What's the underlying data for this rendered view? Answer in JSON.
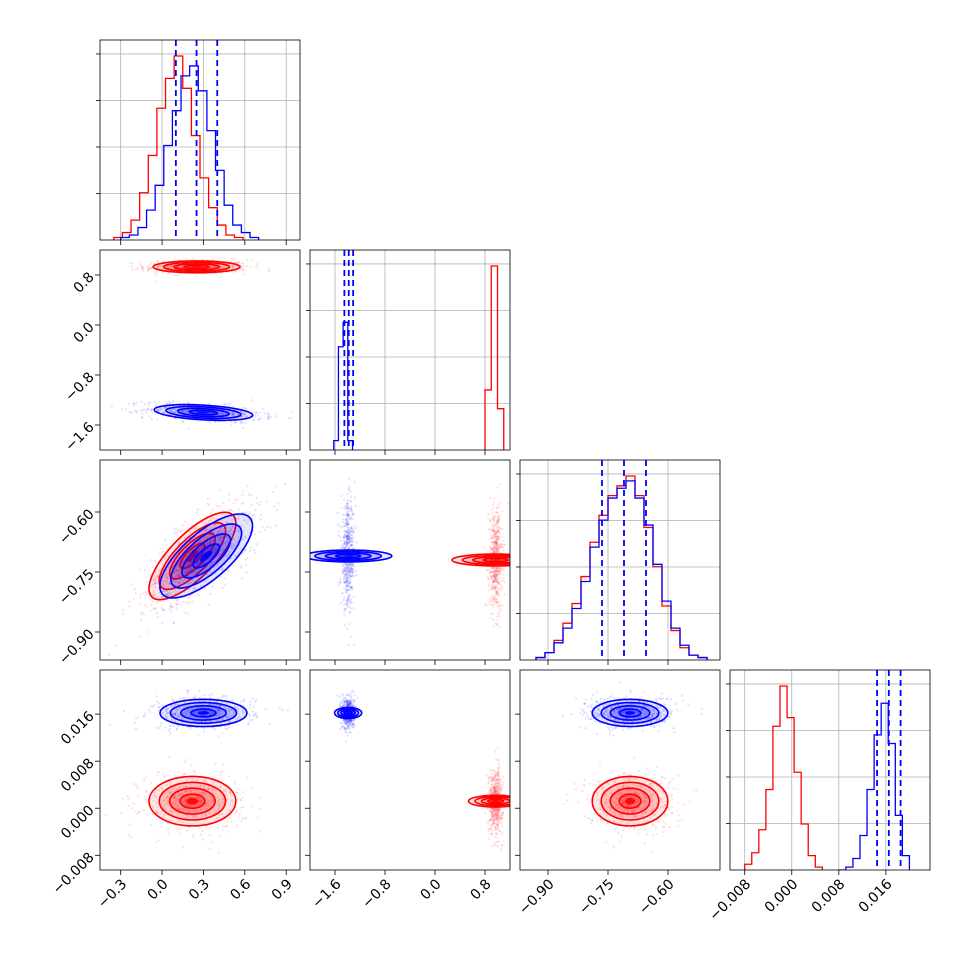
{
  "chart_data": {
    "type": "corner",
    "grid": true,
    "legend": "none",
    "colors": {
      "series_a": "#0000ff",
      "series_b": "#ff0000"
    },
    "params": [
      {
        "range": [
          -0.45,
          1.0
        ],
        "ticks": [
          -0.3,
          0.0,
          0.3,
          0.6,
          0.9
        ],
        "tick_labels": [
          "−0.3",
          "0.0",
          "0.3",
          "0.6",
          "0.9"
        ]
      },
      {
        "range": [
          -2.0,
          1.2
        ],
        "ticks": [
          -1.6,
          -0.8,
          0.0,
          0.8
        ],
        "tick_labels": [
          "−1.6",
          "−0.8",
          "0.0",
          "0.8"
        ]
      },
      {
        "range": [
          -0.97,
          -0.47
        ],
        "ticks": [
          -0.9,
          -0.75,
          -0.6
        ],
        "tick_labels": [
          "−0.90",
          "−0.75",
          "−0.60"
        ]
      },
      {
        "range": [
          -0.0105,
          0.0235
        ],
        "ticks": [
          -0.008,
          0.0,
          0.008,
          0.016
        ],
        "tick_labels": [
          "−0.008",
          "0.000",
          "0.008",
          "0.016"
        ]
      }
    ],
    "marginals": [
      {
        "quantiles": [
          0.1,
          0.25,
          0.4
        ],
        "quantile_color": "#0000ff",
        "series_a": {
          "bin_start": -0.3,
          "bin_width": 0.0625,
          "counts": [
            1,
            2,
            5,
            12,
            22,
            38,
            52,
            66,
            70,
            60,
            44,
            28,
            14,
            6,
            3,
            1
          ]
        },
        "series_b": {
          "bin_start": -0.35,
          "bin_width": 0.0625,
          "counts": [
            1,
            3,
            8,
            19,
            34,
            53,
            65,
            74,
            61,
            42,
            25,
            13,
            6,
            2,
            1
          ]
        }
      },
      {
        "quantiles": [
          -1.45,
          -1.38,
          -1.31
        ],
        "quantile_color": "#0000ff",
        "series_a": {
          "bin_start": -1.62,
          "bin_width": 0.075,
          "counts": [
            5,
            55,
            68,
            5
          ]
        },
        "series_b": {
          "bin_start": 0.8,
          "bin_width": 0.1,
          "counts": [
            32,
            98,
            22
          ]
        }
      },
      {
        "quantiles": [
          -0.765,
          -0.71,
          -0.655
        ],
        "quantile_color": "#0000ff",
        "series_a": {
          "bin_start": -0.93,
          "bin_width": 0.0225,
          "counts": [
            1,
            3,
            7,
            13,
            21,
            32,
            46,
            57,
            66,
            70,
            73,
            66,
            55,
            39,
            24,
            13,
            6,
            2,
            1
          ]
        },
        "series_b": {
          "bin_start": -0.93,
          "bin_width": 0.0225,
          "counts": [
            1,
            3,
            8,
            15,
            23,
            34,
            48,
            59,
            67,
            71,
            75,
            67,
            54,
            38,
            22,
            12,
            5,
            2,
            1
          ]
        }
      },
      {
        "quantiles": [
          0.0145,
          0.0165,
          0.0185
        ],
        "quantile_color": "#0000ff",
        "series_a": {
          "bin_start": 0.008,
          "bin_width": 0.0012,
          "counts": [
            0,
            1,
            4,
            12,
            28,
            47,
            58,
            44,
            19,
            5
          ]
        },
        "series_b": {
          "bin_start": -0.008,
          "bin_width": 0.0012,
          "counts": [
            2,
            6,
            14,
            28,
            50,
            64,
            53,
            34,
            16,
            5,
            1
          ]
        }
      }
    ],
    "joints": [
      {
        "row": 1,
        "col": 0,
        "series_a": {
          "mean": [
            0.3,
            -1.4
          ],
          "sd": [
            0.17,
            0.06
          ],
          "rho": -0.35
        },
        "series_b": {
          "mean": [
            0.25,
            0.93
          ],
          "sd": [
            0.15,
            0.045
          ],
          "rho": 0.0
        }
      },
      {
        "row": 2,
        "col": 0,
        "series_a": {
          "mean": [
            0.32,
            -0.71
          ],
          "sd": [
            0.16,
            0.05
          ],
          "rho": 0.72
        },
        "series_b": {
          "mean": [
            0.22,
            -0.71
          ],
          "sd": [
            0.15,
            0.052
          ],
          "rho": 0.75
        }
      },
      {
        "row": 2,
        "col": 1,
        "series_a": {
          "mean": [
            -1.39,
            -0.71
          ],
          "sd": [
            0.045,
            0.052
          ],
          "rho": 0.0
        },
        "series_b": {
          "mean": [
            0.97,
            -0.72
          ],
          "sd": [
            0.045,
            0.052
          ],
          "rho": 0.0
        }
      },
      {
        "row": 3,
        "col": 0,
        "series_a": {
          "mean": [
            0.3,
            0.0162
          ],
          "sd": [
            0.15,
            0.0011
          ],
          "rho": 0.0
        },
        "series_b": {
          "mean": [
            0.22,
            0.0012
          ],
          "sd": [
            0.15,
            0.002
          ],
          "rho": 0.0
        }
      },
      {
        "row": 3,
        "col": 1,
        "series_a": {
          "mean": [
            -1.39,
            0.0162
          ],
          "sd": [
            0.042,
            0.0011
          ],
          "rho": 0.0
        },
        "series_b": {
          "mean": [
            0.97,
            0.0012
          ],
          "sd": [
            0.045,
            0.0022
          ],
          "rho": 0.0
        }
      },
      {
        "row": 3,
        "col": 2,
        "series_a": {
          "mean": [
            -0.695,
            0.0162
          ],
          "sd": [
            0.045,
            0.0011
          ],
          "rho": 0.0
        },
        "series_b": {
          "mean": [
            -0.695,
            0.0012
          ],
          "sd": [
            0.045,
            0.002
          ],
          "rho": 0.0
        }
      }
    ]
  }
}
